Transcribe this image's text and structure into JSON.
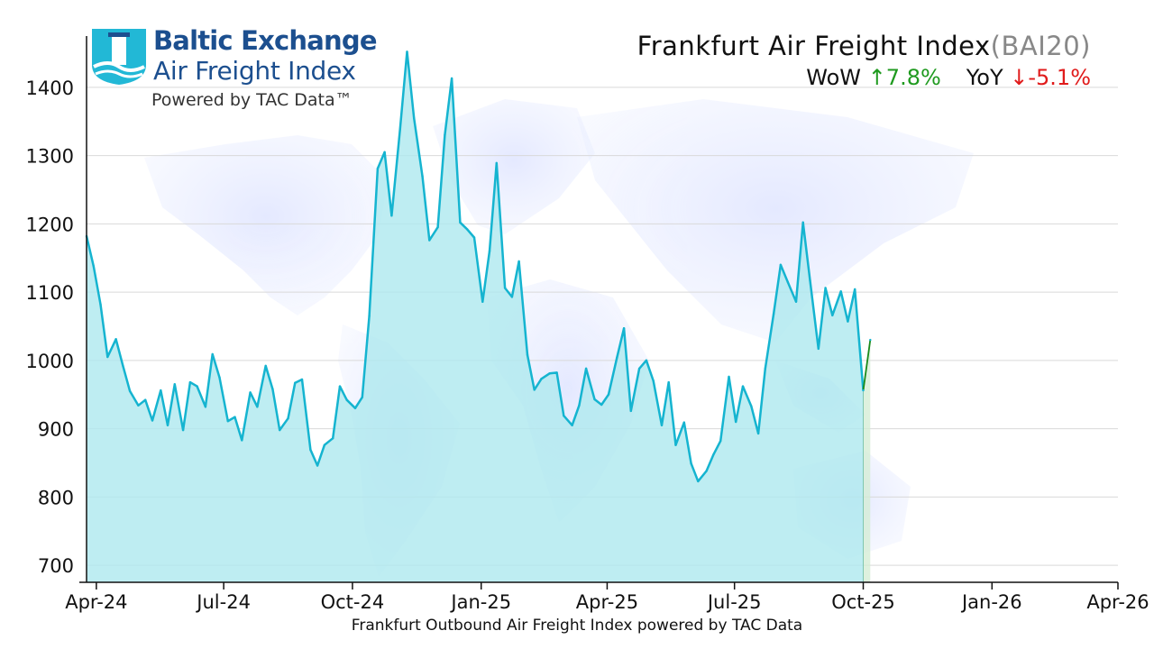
{
  "logo": {
    "brand": "Baltic Exchange",
    "sub": "Air Freight Index",
    "powered": "Powered by TAC Data™"
  },
  "header": {
    "title": "Frankfurt Air Freight Index",
    "code": "(BAI20)",
    "wow_label": "WoW",
    "wow_arrow": "↑",
    "wow_value": "7.8%",
    "yoy_label": "YoY",
    "yoy_arrow": "↓",
    "yoy_value": "-5.1%"
  },
  "caption": "Frankfurt Outbound Air Freight Index powered by TAC Data",
  "colors": {
    "line": "#15b4d0",
    "fill": "#aee9ef",
    "latest_line": "#1a8a1a",
    "latest_fill": "#d3ecd3",
    "grid": "#d9d9d9",
    "title_code": "#888888",
    "up": "#1f9a1f",
    "down": "#e01b1b",
    "brand": "#1c4f8f"
  },
  "chart_data": {
    "type": "area",
    "xlabel": "",
    "ylabel": "",
    "ylim": [
      675,
      1475
    ],
    "xlim": [
      "2024-03-25",
      "2026-04-01"
    ],
    "y_ticks": [
      700,
      800,
      900,
      1000,
      1100,
      1200,
      1300,
      1400
    ],
    "x_ticks": [
      {
        "label": "Apr-24",
        "date": "2024-04-01"
      },
      {
        "label": "Jul-24",
        "date": "2024-07-01"
      },
      {
        "label": "Oct-24",
        "date": "2024-10-01"
      },
      {
        "label": "Jan-25",
        "date": "2025-01-01"
      },
      {
        "label": "Apr-25",
        "date": "2025-04-01"
      },
      {
        "label": "Jul-25",
        "date": "2025-07-01"
      },
      {
        "label": "Oct-25",
        "date": "2025-10-01"
      },
      {
        "label": "Jan-26",
        "date": "2026-01-01"
      },
      {
        "label": "Apr-26",
        "date": "2026-04-01"
      }
    ],
    "grid": true,
    "series": [
      {
        "points": [
          [
            "2024-03-25",
            1182
          ],
          [
            "2024-03-30",
            1138
          ],
          [
            "2024-04-04",
            1082
          ],
          [
            "2024-04-09",
            1005
          ],
          [
            "2024-04-15",
            1031
          ],
          [
            "2024-04-20",
            992
          ],
          [
            "2024-04-25",
            955
          ],
          [
            "2024-05-01",
            934
          ],
          [
            "2024-05-06",
            942
          ],
          [
            "2024-05-11",
            912
          ],
          [
            "2024-05-17",
            956
          ],
          [
            "2024-05-22",
            905
          ],
          [
            "2024-05-27",
            965
          ],
          [
            "2024-06-02",
            898
          ],
          [
            "2024-06-07",
            968
          ],
          [
            "2024-06-12",
            962
          ],
          [
            "2024-06-18",
            932
          ],
          [
            "2024-06-23",
            1009
          ],
          [
            "2024-06-28",
            975
          ],
          [
            "2024-07-04",
            911
          ],
          [
            "2024-07-09",
            917
          ],
          [
            "2024-07-14",
            883
          ],
          [
            "2024-07-20",
            953
          ],
          [
            "2024-07-25",
            932
          ],
          [
            "2024-07-31",
            992
          ],
          [
            "2024-08-05",
            958
          ],
          [
            "2024-08-10",
            898
          ],
          [
            "2024-08-16",
            915
          ],
          [
            "2024-08-21",
            967
          ],
          [
            "2024-08-26",
            972
          ],
          [
            "2024-09-01",
            869
          ],
          [
            "2024-09-06",
            846
          ],
          [
            "2024-09-11",
            876
          ],
          [
            "2024-09-17",
            886
          ],
          [
            "2024-09-22",
            962
          ],
          [
            "2024-09-27",
            942
          ],
          [
            "2024-10-03",
            930
          ],
          [
            "2024-10-08",
            946
          ],
          [
            "2024-10-13",
            1065
          ],
          [
            "2024-10-19",
            1281
          ],
          [
            "2024-10-24",
            1305
          ],
          [
            "2024-10-29",
            1212
          ],
          [
            "2024-11-04",
            1338
          ],
          [
            "2024-11-09",
            1452
          ],
          [
            "2024-11-14",
            1355
          ],
          [
            "2024-11-20",
            1270
          ],
          [
            "2024-11-25",
            1176
          ],
          [
            "2024-12-01",
            1195
          ],
          [
            "2024-12-06",
            1330
          ],
          [
            "2024-12-11",
            1413
          ],
          [
            "2024-12-17",
            1202
          ],
          [
            "2024-12-22",
            1192
          ],
          [
            "2024-12-27",
            1180
          ],
          [
            "2025-01-02",
            1086
          ],
          [
            "2025-01-07",
            1160
          ],
          [
            "2025-01-12",
            1289
          ],
          [
            "2025-01-18",
            1106
          ],
          [
            "2025-01-23",
            1093
          ],
          [
            "2025-01-28",
            1145
          ],
          [
            "2025-02-03",
            1008
          ],
          [
            "2025-02-08",
            957
          ],
          [
            "2025-02-13",
            973
          ],
          [
            "2025-02-19",
            981
          ],
          [
            "2025-02-24",
            982
          ],
          [
            "2025-03-01",
            919
          ],
          [
            "2025-03-07",
            905
          ],
          [
            "2025-03-12",
            934
          ],
          [
            "2025-03-17",
            988
          ],
          [
            "2025-03-23",
            943
          ],
          [
            "2025-03-28",
            935
          ],
          [
            "2025-04-02",
            950
          ],
          [
            "2025-04-08",
            1004
          ],
          [
            "2025-04-13",
            1047
          ],
          [
            "2025-04-18",
            926
          ],
          [
            "2025-04-24",
            988
          ],
          [
            "2025-04-29",
            1000
          ],
          [
            "2025-05-04",
            970
          ],
          [
            "2025-05-10",
            905
          ],
          [
            "2025-05-15",
            968
          ],
          [
            "2025-05-20",
            876
          ],
          [
            "2025-05-26",
            909
          ],
          [
            "2025-05-31",
            849
          ],
          [
            "2025-06-05",
            823
          ],
          [
            "2025-06-11",
            838
          ],
          [
            "2025-06-16",
            862
          ],
          [
            "2025-06-21",
            882
          ],
          [
            "2025-06-27",
            976
          ],
          [
            "2025-07-02",
            910
          ],
          [
            "2025-07-07",
            962
          ],
          [
            "2025-07-13",
            933
          ],
          [
            "2025-07-18",
            893
          ],
          [
            "2025-07-23",
            988
          ],
          [
            "2025-07-29",
            1068
          ],
          [
            "2025-08-03",
            1140
          ],
          [
            "2025-08-08",
            1115
          ],
          [
            "2025-08-14",
            1086
          ],
          [
            "2025-08-19",
            1202
          ],
          [
            "2025-08-24",
            1117
          ],
          [
            "2025-08-30",
            1017
          ],
          [
            "2025-09-04",
            1106
          ],
          [
            "2025-09-09",
            1066
          ],
          [
            "2025-09-15",
            1101
          ],
          [
            "2025-09-20",
            1057
          ],
          [
            "2025-09-25",
            1104
          ],
          [
            "2025-10-01",
            956
          ],
          [
            "2025-10-06",
            1030
          ]
        ]
      }
    ]
  }
}
